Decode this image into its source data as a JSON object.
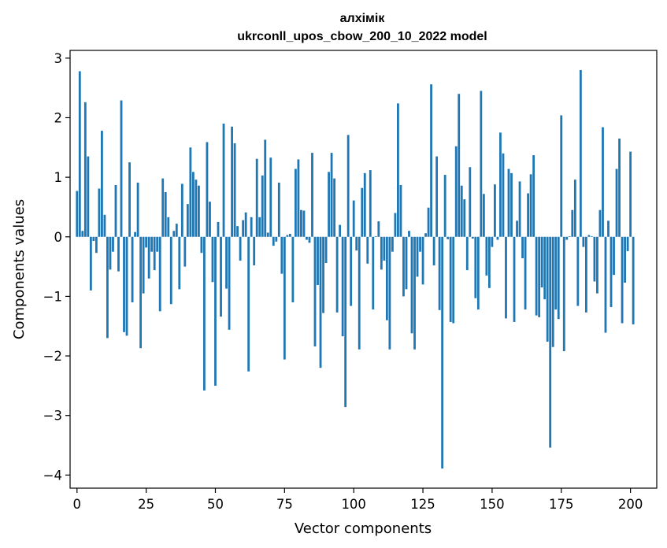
{
  "chart_data": {
    "type": "bar",
    "title": "алхімік",
    "subtitle": "ukrconll_upos_cbow_200_10_2022 model",
    "xlabel": "Vector components",
    "ylabel": "Components values",
    "xlim": [
      -2.5,
      209.5
    ],
    "ylim": [
      -4.22,
      3.13
    ],
    "x_ticks": [
      0,
      25,
      50,
      75,
      100,
      125,
      150,
      175,
      200
    ],
    "x_tick_labels": [
      "0",
      "25",
      "50",
      "75",
      "100",
      "125",
      "150",
      "175",
      "200"
    ],
    "y_ticks": [
      -4,
      -3,
      -2,
      -1,
      0,
      1,
      2,
      3
    ],
    "y_tick_labels": [
      "−4",
      "−3",
      "−2",
      "−1",
      "0",
      "1",
      "2",
      "3"
    ],
    "grid": false,
    "bar_color": "#1f77b4",
    "values": [
      0.77,
      2.78,
      0.1,
      2.26,
      1.35,
      -0.9,
      -0.07,
      -0.27,
      0.81,
      1.78,
      0.37,
      -1.7,
      -0.55,
      -0.25,
      0.87,
      -0.58,
      2.29,
      -1.6,
      -1.66,
      1.25,
      -1.1,
      0.08,
      0.91,
      -1.87,
      -0.95,
      -0.18,
      -0.7,
      -0.25,
      -0.56,
      -0.25,
      -1.25,
      0.98,
      0.75,
      0.33,
      -1.13,
      0.1,
      0.22,
      -0.88,
      0.89,
      -0.5,
      0.55,
      1.5,
      1.09,
      0.96,
      0.86,
      -0.27,
      -2.58,
      1.59,
      0.59,
      -0.76,
      -2.5,
      0.25,
      -1.34,
      1.9,
      -0.87,
      -1.56,
      1.85,
      1.57,
      0.18,
      -0.4,
      0.28,
      0.41,
      -2.26,
      0.33,
      -0.48,
      1.31,
      0.33,
      1.03,
      1.63,
      0.07,
      1.33,
      -0.15,
      -0.08,
      0.91,
      -0.62,
      -2.06,
      0.03,
      0.05,
      -1.1,
      1.14,
      1.3,
      0.45,
      0.44,
      -0.05,
      -0.1,
      1.41,
      -1.84,
      -0.81,
      -2.2,
      -1.28,
      -0.44,
      1.09,
      1.41,
      0.98,
      -1.27,
      0.2,
      -1.67,
      -2.86,
      1.71,
      -1.16,
      0.61,
      -0.23,
      -1.89,
      0.82,
      1.07,
      -0.45,
      1.12,
      -1.22,
      0.01,
      0.26,
      -0.55,
      -0.4,
      -1.4,
      -1.89,
      -0.25,
      0.4,
      2.24,
      0.87,
      -1.0,
      -0.88,
      0.1,
      -1.62,
      -1.89,
      -0.67,
      -0.25,
      -0.8,
      0.06,
      0.49,
      2.56,
      -0.48,
      1.35,
      -1.23,
      -3.89,
      1.04,
      -0.04,
      -1.43,
      -1.45,
      1.52,
      2.4,
      0.86,
      0.63,
      -0.56,
      1.17,
      -0.03,
      -1.03,
      -1.22,
      2.45,
      0.72,
      -0.65,
      -0.86,
      -0.17,
      0.88,
      -0.05,
      1.75,
      1.4,
      -1.37,
      1.14,
      1.07,
      -1.43,
      0.27,
      0.93,
      -0.36,
      -1.22,
      0.73,
      1.05,
      1.37,
      -1.32,
      -1.35,
      -0.85,
      -1.05,
      -1.76,
      -3.54,
      -1.85,
      -1.22,
      -1.38,
      2.04,
      -1.92,
      -0.05,
      0.01,
      0.45,
      0.96,
      -1.16,
      2.8,
      -0.17,
      -1.27,
      0.03,
      0.01,
      -0.75,
      -0.95,
      0.45,
      1.84,
      -1.61,
      0.27,
      -1.18,
      -0.64,
      1.14,
      1.65,
      -1.45,
      -0.77,
      -0.24,
      1.43,
      -1.47
    ]
  }
}
